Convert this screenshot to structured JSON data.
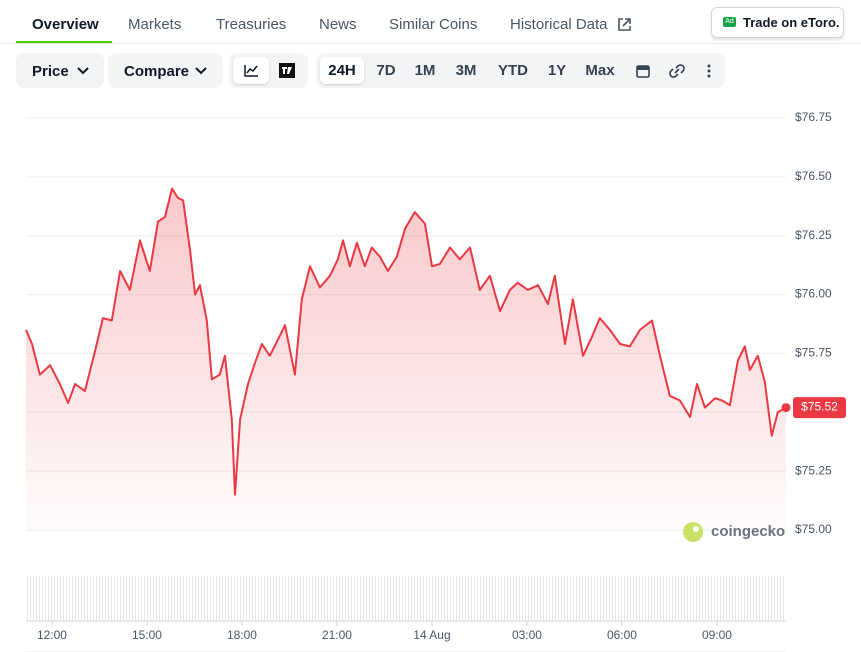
{
  "tabs": [
    "Overview",
    "Markets",
    "Treasuries",
    "News",
    "Similar Coins",
    "Historical Data"
  ],
  "ad_button": {
    "badge": "Ad",
    "label": "Trade on eToro."
  },
  "toolbar": {
    "dropdowns": [
      "Price",
      "Compare"
    ],
    "ranges": [
      "24H",
      "7D",
      "1M",
      "3M",
      "YTD",
      "1Y",
      "Max"
    ]
  },
  "watermark": "coingecko",
  "chart_data": {
    "type": "line",
    "x": [
      11.18,
      11.37,
      11.62,
      11.94,
      12.25,
      12.51,
      12.73,
      13.04,
      13.36,
      13.61,
      13.89,
      14.15,
      14.46,
      14.78,
      15.09,
      15.35,
      15.57,
      15.79,
      15.98,
      16.14,
      16.36,
      16.52,
      16.67,
      16.89,
      17.05,
      17.3,
      17.46,
      17.68,
      17.78,
      17.94,
      18.19,
      18.41,
      18.63,
      18.88,
      19.14,
      19.36,
      19.67,
      19.89,
      20.15,
      20.46,
      20.78,
      21.03,
      21.19,
      21.41,
      21.63,
      21.88,
      22.1,
      22.36,
      22.61,
      22.89,
      23.15,
      23.46,
      23.78,
      24.0,
      24.25,
      24.57,
      24.88,
      25.2,
      25.51,
      25.83,
      26.15,
      26.46,
      26.71,
      27.03,
      27.35,
      27.66,
      27.88,
      28.2,
      28.45,
      28.77,
      29.05,
      29.3,
      29.62,
      29.94,
      30.25,
      30.57,
      30.95,
      31.2,
      31.51,
      31.83,
      32.15,
      32.37,
      32.62,
      32.94,
      33.16,
      33.41,
      33.66,
      33.88,
      34.04,
      34.29,
      34.51,
      34.73,
      34.92,
      35.18
    ],
    "series": [
      {
        "name": "Price",
        "color": "#ea3943",
        "values": [
          75.85,
          75.79,
          75.66,
          75.7,
          75.62,
          75.54,
          75.62,
          75.59,
          75.76,
          75.9,
          75.89,
          76.1,
          76.02,
          76.23,
          76.1,
          76.31,
          76.33,
          76.45,
          76.41,
          76.4,
          76.19,
          76.0,
          76.04,
          75.89,
          75.64,
          75.66,
          75.74,
          75.47,
          75.15,
          75.47,
          75.62,
          75.71,
          75.79,
          75.74,
          75.81,
          75.87,
          75.66,
          75.98,
          76.12,
          76.03,
          76.08,
          76.15,
          76.23,
          76.12,
          76.22,
          76.12,
          76.2,
          76.16,
          76.1,
          76.16,
          76.28,
          76.35,
          76.3,
          76.12,
          76.13,
          76.2,
          76.15,
          76.2,
          76.02,
          76.08,
          75.93,
          76.02,
          76.05,
          76.02,
          76.04,
          75.96,
          76.08,
          75.79,
          75.98,
          75.74,
          75.82,
          75.9,
          75.85,
          75.79,
          75.78,
          75.85,
          75.89,
          75.74,
          75.57,
          75.55,
          75.48,
          75.62,
          75.52,
          75.56,
          75.55,
          75.53,
          75.72,
          75.78,
          75.68,
          75.74,
          75.63,
          75.4,
          75.5,
          75.52
        ]
      }
    ],
    "last_price": {
      "value": 75.52,
      "label": "$75.52"
    },
    "xlim": [
      11.18,
      35.18
    ],
    "xticks": [
      {
        "value": 12,
        "label": "12:00"
      },
      {
        "value": 15,
        "label": "15:00"
      },
      {
        "value": 18,
        "label": "18:00"
      },
      {
        "value": 21,
        "label": "21:00"
      },
      {
        "value": 24,
        "label": "14 Aug"
      },
      {
        "value": 27,
        "label": "03:00"
      },
      {
        "value": 30,
        "label": "06:00"
      },
      {
        "value": 33,
        "label": "09:00"
      }
    ],
    "ylim": [
      75,
      76.75
    ],
    "yticks": [
      {
        "value": 75,
        "label": "$75.00"
      },
      {
        "value": 75.25,
        "label": "$75.25"
      },
      {
        "value": 75.5,
        "label": "$75.50"
      },
      {
        "value": 75.75,
        "label": "$75.75"
      },
      {
        "value": 76,
        "label": "$76.00"
      },
      {
        "value": 76.25,
        "label": "$76.25"
      },
      {
        "value": 76.5,
        "label": "$76.50"
      },
      {
        "value": 76.75,
        "label": "$76.75"
      }
    ],
    "grid": true
  }
}
